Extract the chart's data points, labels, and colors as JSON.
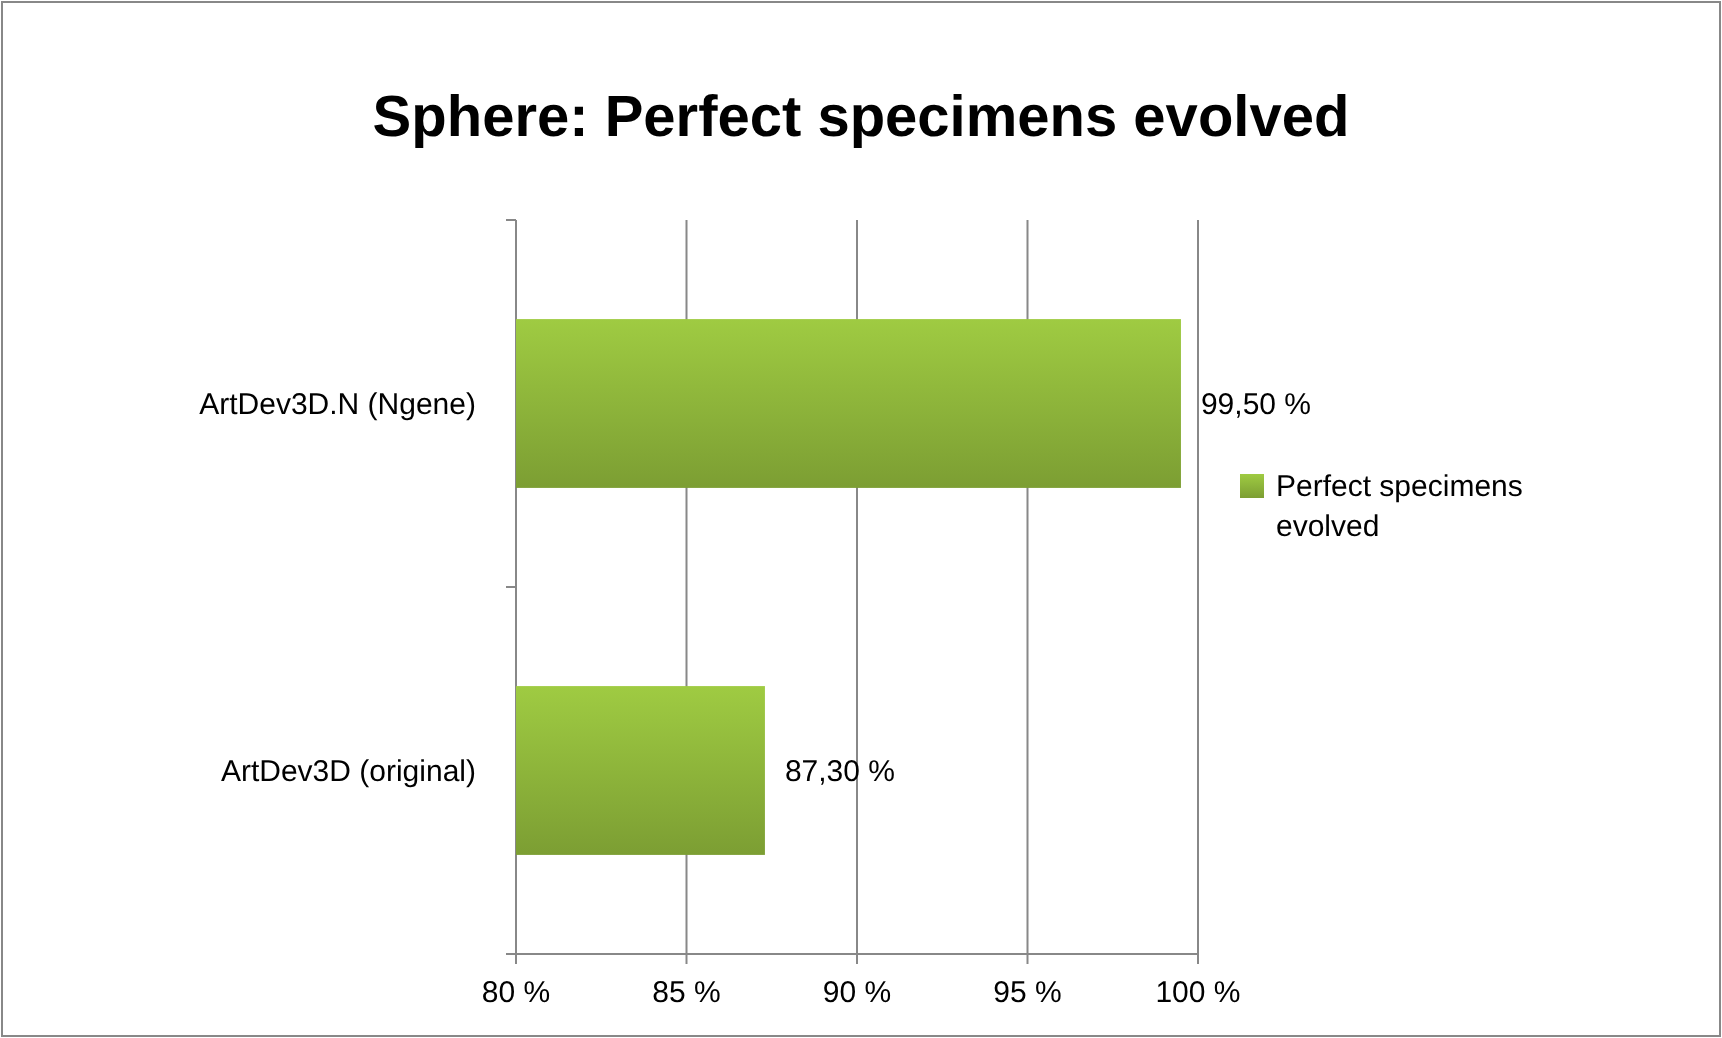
{
  "chart_data": {
    "type": "bar",
    "orientation": "horizontal",
    "title": "Sphere: Perfect specimens evolved",
    "categories": [
      "ArtDev3D.N (Ngene)",
      "ArtDev3D (original)"
    ],
    "series": [
      {
        "name": "Perfect specimens evolved",
        "color": "#8cb33a",
        "values": [
          99.5,
          87.3
        ],
        "value_labels": [
          "99,50 %",
          "87,30 %"
        ]
      }
    ],
    "xlim": [
      80,
      100
    ],
    "xticks": [
      {
        "value": 80,
        "label": "80 %"
      },
      {
        "value": 85,
        "label": "85 %"
      },
      {
        "value": 90,
        "label": "90 %"
      },
      {
        "value": 95,
        "label": "95 %"
      },
      {
        "value": 100,
        "label": "100 %"
      }
    ],
    "grid": "x",
    "legend": "right"
  }
}
